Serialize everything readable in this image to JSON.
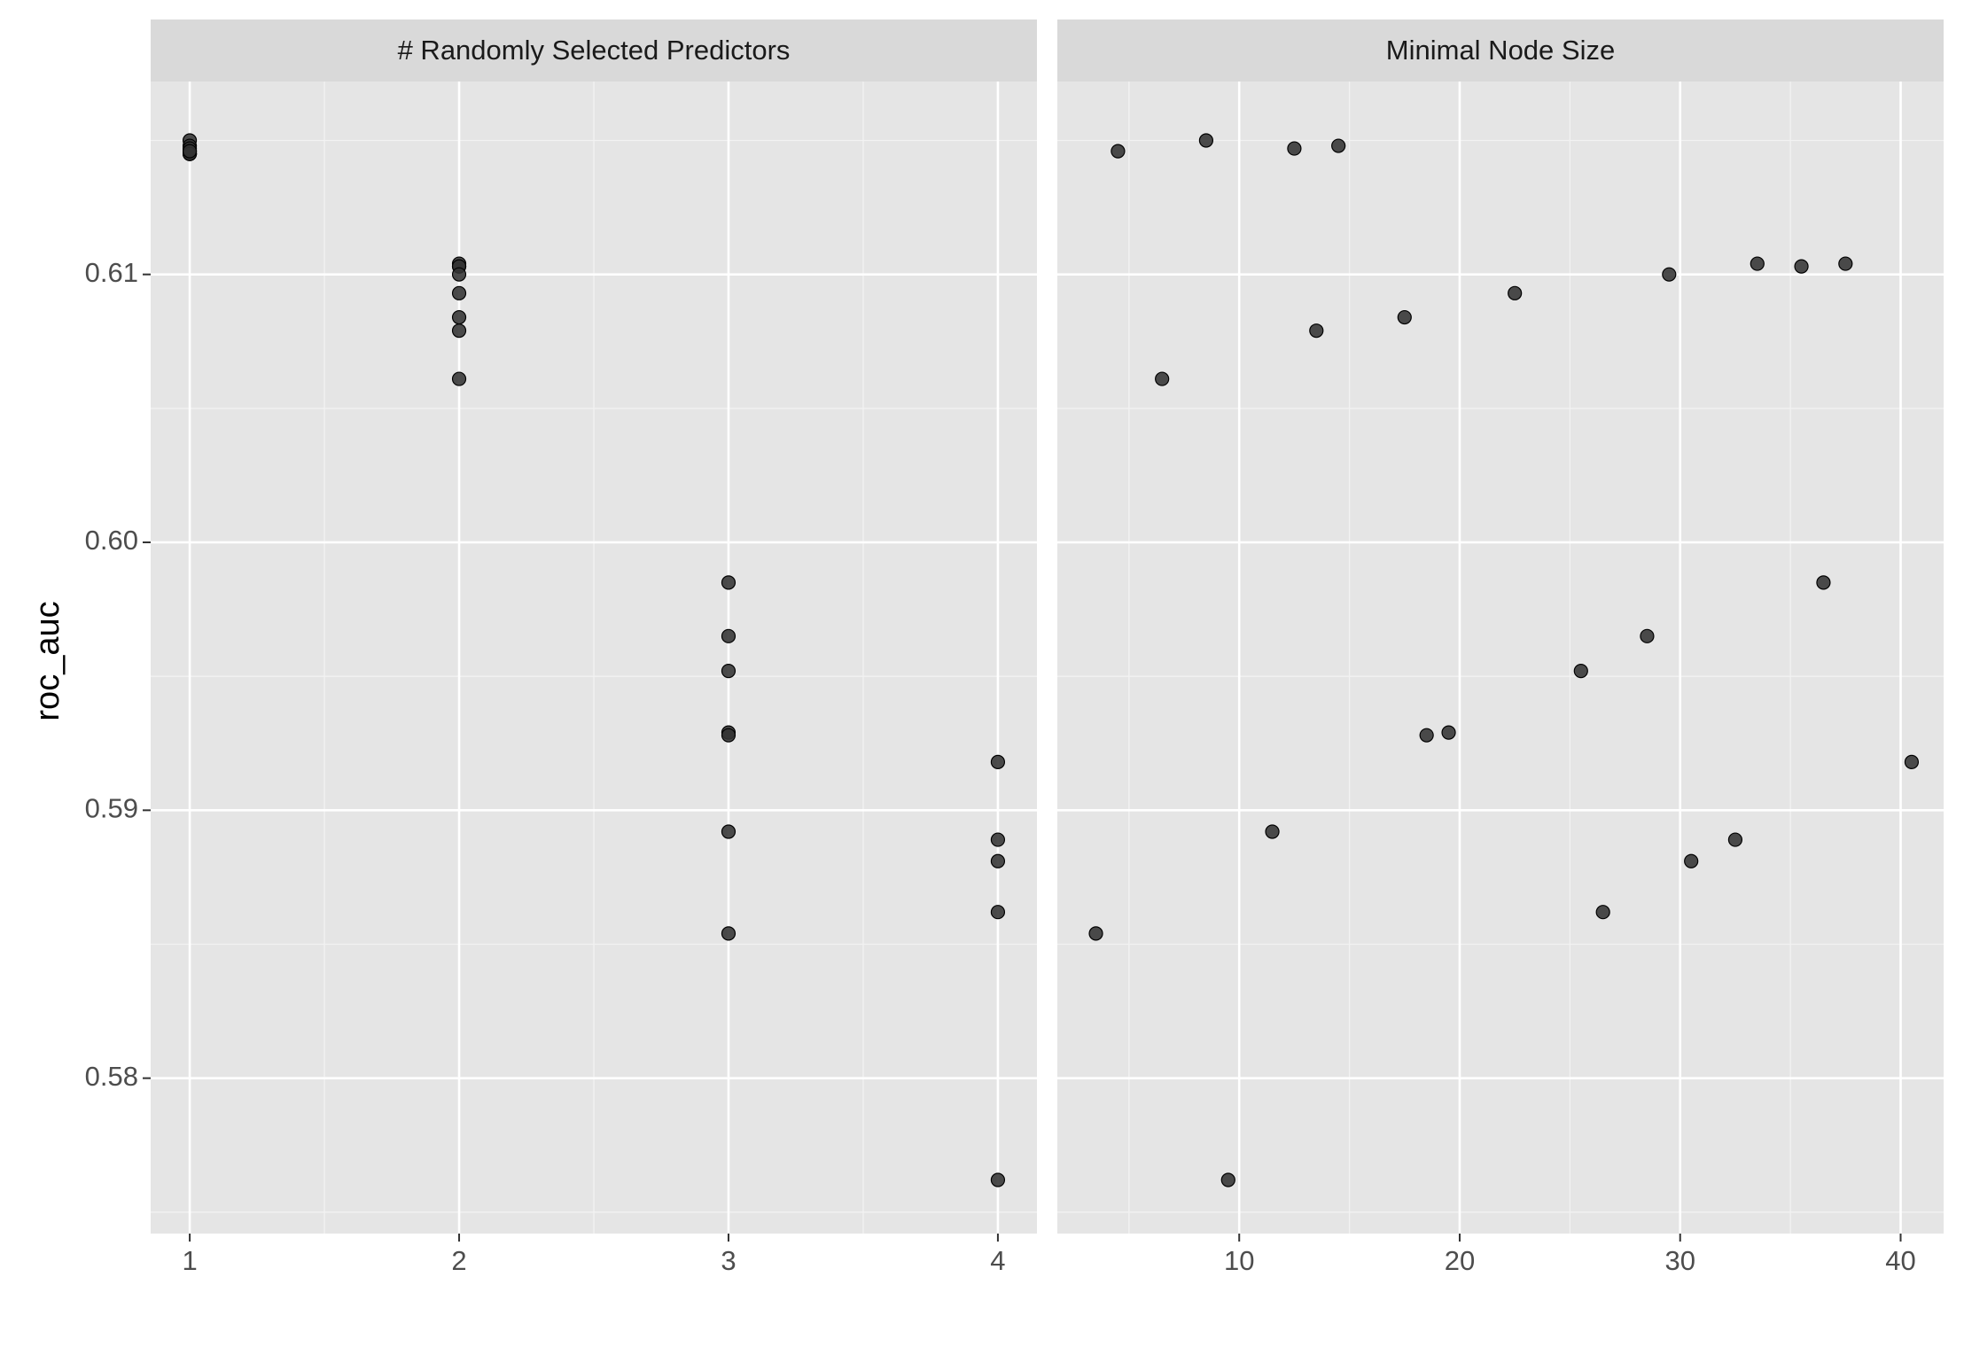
{
  "chart_data": [
    {
      "type": "scatter",
      "facet_label": "# Randomly Selected Predictors",
      "ylabel": "roc_auc",
      "xlabel": "",
      "xlim": [
        0.855,
        4.145
      ],
      "ylim": [
        0.5742,
        0.6172
      ],
      "x_ticks": [
        1,
        2,
        3,
        4
      ],
      "y_ticks": [
        0.58,
        0.59,
        0.6,
        0.61
      ],
      "y_tick_labels": [
        "0.58",
        "0.59",
        "0.60",
        "0.61"
      ],
      "grid": true,
      "points": [
        {
          "x": 1,
          "y": 0.615
        },
        {
          "x": 1,
          "y": 0.6148
        },
        {
          "x": 1,
          "y": 0.6146
        },
        {
          "x": 1,
          "y": 0.6145
        },
        {
          "x": 1,
          "y": 0.6147
        },
        {
          "x": 1,
          "y": 0.6145
        },
        {
          "x": 1,
          "y": 0.6145
        },
        {
          "x": 1,
          "y": 0.6146
        },
        {
          "x": 2,
          "y": 0.6103
        },
        {
          "x": 2,
          "y": 0.6104
        },
        {
          "x": 2,
          "y": 0.6103
        },
        {
          "x": 2,
          "y": 0.61
        },
        {
          "x": 2,
          "y": 0.6093
        },
        {
          "x": 2,
          "y": 0.6084
        },
        {
          "x": 2,
          "y": 0.6079
        },
        {
          "x": 2,
          "y": 0.6061
        },
        {
          "x": 3,
          "y": 0.5985
        },
        {
          "x": 3,
          "y": 0.5965
        },
        {
          "x": 3,
          "y": 0.5952
        },
        {
          "x": 3,
          "y": 0.5929
        },
        {
          "x": 3,
          "y": 0.5928
        },
        {
          "x": 3,
          "y": 0.5892
        },
        {
          "x": 3,
          "y": 0.5854
        },
        {
          "x": 4,
          "y": 0.5918
        },
        {
          "x": 4,
          "y": 0.5889
        },
        {
          "x": 4,
          "y": 0.5881
        },
        {
          "x": 4,
          "y": 0.5862
        },
        {
          "x": 4,
          "y": 0.5762
        }
      ]
    },
    {
      "type": "scatter",
      "facet_label": "Minimal Node Size",
      "ylabel": "",
      "xlabel": "",
      "xlim": [
        1.75,
        41.95
      ],
      "ylim": [
        0.5742,
        0.6172
      ],
      "x_ticks": [
        10,
        20,
        30,
        40
      ],
      "grid": true,
      "points": [
        {
          "x": 3.5,
          "y": 0.5854
        },
        {
          "x": 4.5,
          "y": 0.6146
        },
        {
          "x": 6.5,
          "y": 0.6061
        },
        {
          "x": 8.5,
          "y": 0.615
        },
        {
          "x": 9.5,
          "y": 0.5762
        },
        {
          "x": 11.5,
          "y": 0.5892
        },
        {
          "x": 12.5,
          "y": 0.6147
        },
        {
          "x": 13.5,
          "y": 0.6079
        },
        {
          "x": 14.5,
          "y": 0.6148
        },
        {
          "x": 17.5,
          "y": 0.6084
        },
        {
          "x": 18.5,
          "y": 0.5928
        },
        {
          "x": 19.5,
          "y": 0.5929
        },
        {
          "x": 22.5,
          "y": 0.6093
        },
        {
          "x": 25.5,
          "y": 0.5952
        },
        {
          "x": 26.5,
          "y": 0.5862
        },
        {
          "x": 28.5,
          "y": 0.5965
        },
        {
          "x": 29.5,
          "y": 0.61
        },
        {
          "x": 30.5,
          "y": 0.5881
        },
        {
          "x": 32.5,
          "y": 0.5889
        },
        {
          "x": 33.5,
          "y": 0.6104
        },
        {
          "x": 35.5,
          "y": 0.6103
        },
        {
          "x": 36.5,
          "y": 0.5985
        },
        {
          "x": 37.5,
          "y": 0.6104
        },
        {
          "x": 40.5,
          "y": 0.5918
        }
      ]
    }
  ],
  "colors": {
    "panel_background": "#e5e5e5",
    "grid_major": "#ffffff",
    "grid_minor": "#f2f2f2",
    "strip_background": "#d9d9d9",
    "point_fill": "#333333",
    "point_stroke": "#000000",
    "tick_text": "#4d4d4d",
    "tick_mark": "#333333"
  }
}
